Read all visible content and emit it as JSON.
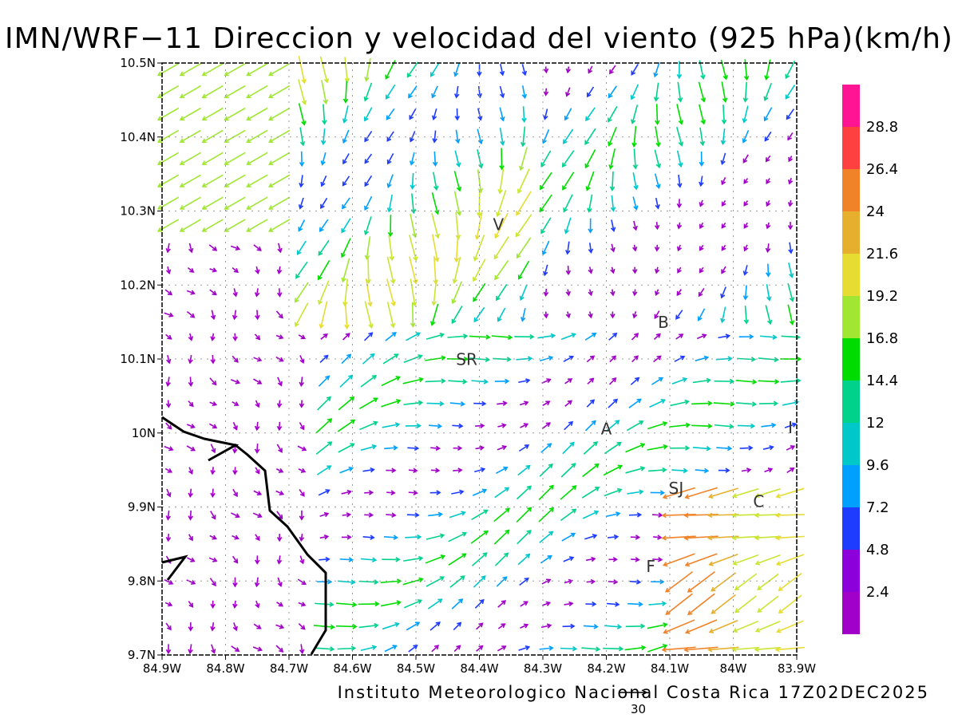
{
  "title": "IMN/WRF−11 Direccion y velocidad del viento (925 hPa)(km/h)",
  "footer": "Instituto Meteorologico Nacional Costa Rica 17Z02DEC2025",
  "reference_vector": {
    "value": "30"
  },
  "axes": {
    "x_ticks": [
      "84.9W",
      "84.8W",
      "84.7W",
      "84.6W",
      "84.5W",
      "84.4W",
      "84.3W",
      "84.2W",
      "84.1W",
      "84W",
      "83.9W"
    ],
    "y_ticks": [
      "10.5N",
      "10.4N",
      "10.3N",
      "10.2N",
      "10.1N",
      "10N",
      "9.9N",
      "9.8N",
      "9.7N"
    ],
    "x_range": [
      -84.9,
      -83.9
    ],
    "y_range": [
      9.7,
      10.5
    ],
    "grid": "dotted"
  },
  "colorbar": {
    "labels": [
      "28.8",
      "26.4",
      "24",
      "21.6",
      "19.2",
      "16.8",
      "14.4",
      "12",
      "9.6",
      "7.2",
      "4.8",
      "2.4"
    ],
    "colors": [
      "#ff1493",
      "#ff4040",
      "#f08228",
      "#e6af2d",
      "#e6dc32",
      "#a0e632",
      "#00dc00",
      "#00d28c",
      "#00c8c8",
      "#00a0ff",
      "#1e3cff",
      "#8c00dc",
      "#a000c8"
    ]
  },
  "place_labels": [
    {
      "text": "V",
      "lon": -84.37,
      "lat": 10.274
    },
    {
      "text": "SR",
      "lon": -84.42,
      "lat": 10.092
    },
    {
      "text": "B",
      "lon": -84.11,
      "lat": 10.142
    },
    {
      "text": "A",
      "lon": -84.2,
      "lat": 9.998
    },
    {
      "text": "SJ",
      "lon": -84.09,
      "lat": 9.918
    },
    {
      "text": "C",
      "lon": -83.96,
      "lat": 9.9
    },
    {
      "text": "F",
      "lon": -84.13,
      "lat": 9.812
    },
    {
      "text": "I",
      "lon": -83.91,
      "lat": 10.0
    }
  ]
}
